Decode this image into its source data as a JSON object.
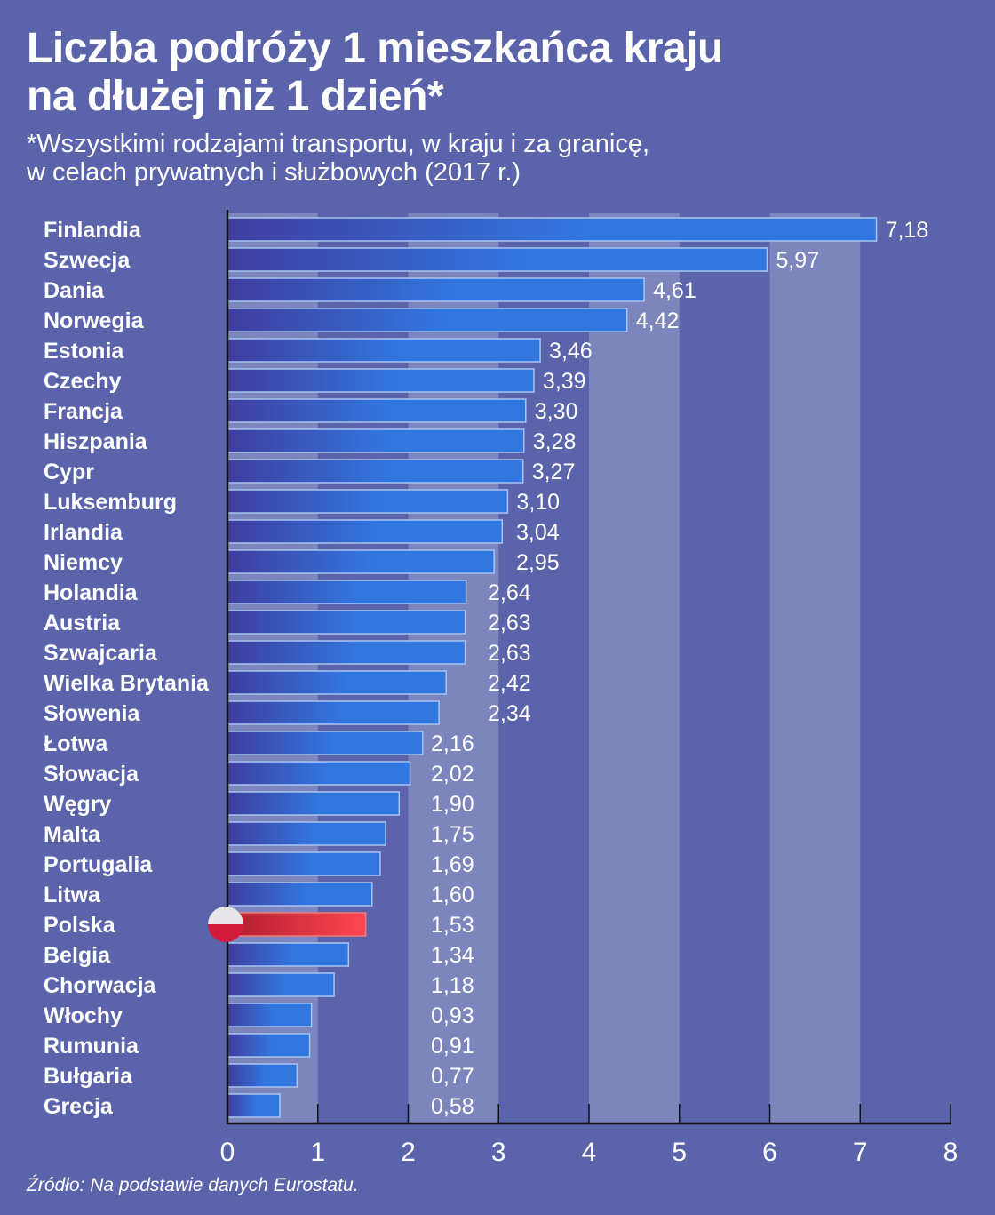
{
  "title_line1": "Liczba podróży 1 mieszkańca kraju",
  "title_line2": "na dłużej niż 1 dzień*",
  "subtitle_line1": "*Wszystkimi rodzajami transportu, w kraju i za granicę,",
  "subtitle_line2": "w celach prywatnych i służbowych (2017 r.)",
  "source": "Źródło: Na podstawie danych Eurostatu.",
  "colors": {
    "background": "#5b64ab",
    "stripe": "#7c86bc",
    "bar_start": "#3f3d9e",
    "bar_end": "#3177e0",
    "highlight_start": "#b01c30",
    "highlight_end": "#ff4650",
    "flag_white": "#e8e6e8",
    "flag_red": "#d51b3c"
  },
  "chart_data": {
    "type": "bar",
    "orientation": "horizontal",
    "title": "Liczba podróży 1 mieszkańca kraju na dłużej niż 1 dzień*",
    "xlabel": "",
    "ylabel": "",
    "xlim": [
      0,
      8
    ],
    "xticks": [
      "0",
      "1",
      "2",
      "3",
      "4",
      "5",
      "6",
      "7",
      "8"
    ],
    "highlight": "Polska",
    "highlight_icon": "poland-flag-icon",
    "categories": [
      "Finlandia",
      "Szwecja",
      "Dania",
      "Norwegia",
      "Estonia",
      "Czechy",
      "Francja",
      "Hiszpania",
      "Cypr",
      "Luksemburg",
      "Irlandia",
      "Niemcy",
      "Holandia",
      "Austria",
      "Szwajcaria",
      "Wielka Brytania",
      "Słowenia",
      "Łotwa",
      "Słowacja",
      "Węgry",
      "Malta",
      "Portugalia",
      "Litwa",
      "Polska",
      "Belgia",
      "Chorwacja",
      "Włochy",
      "Rumunia",
      "Bułgaria",
      "Grecja"
    ],
    "values": [
      7.18,
      5.97,
      4.61,
      4.42,
      3.46,
      3.39,
      3.3,
      3.28,
      3.27,
      3.1,
      3.04,
      2.95,
      2.64,
      2.63,
      2.63,
      2.42,
      2.34,
      2.16,
      2.02,
      1.9,
      1.75,
      1.69,
      1.6,
      1.53,
      1.34,
      1.18,
      0.93,
      0.91,
      0.77,
      0.58
    ],
    "value_labels": [
      "7,18",
      "5,97",
      "4,61",
      "4,42",
      "3,46",
      "3,39",
      "3,30",
      "3,28",
      "3,27",
      "3,10",
      "3,04",
      "2,95",
      "2,64",
      "2,63",
      "2,63",
      "2,42",
      "2,34",
      "2,16",
      "2,02",
      "1,90",
      "1,75",
      "1,69",
      "1,60",
      "1,53",
      "1,34",
      "1,18",
      "0,93",
      "0,91",
      "0,77",
      "0,58"
    ]
  }
}
